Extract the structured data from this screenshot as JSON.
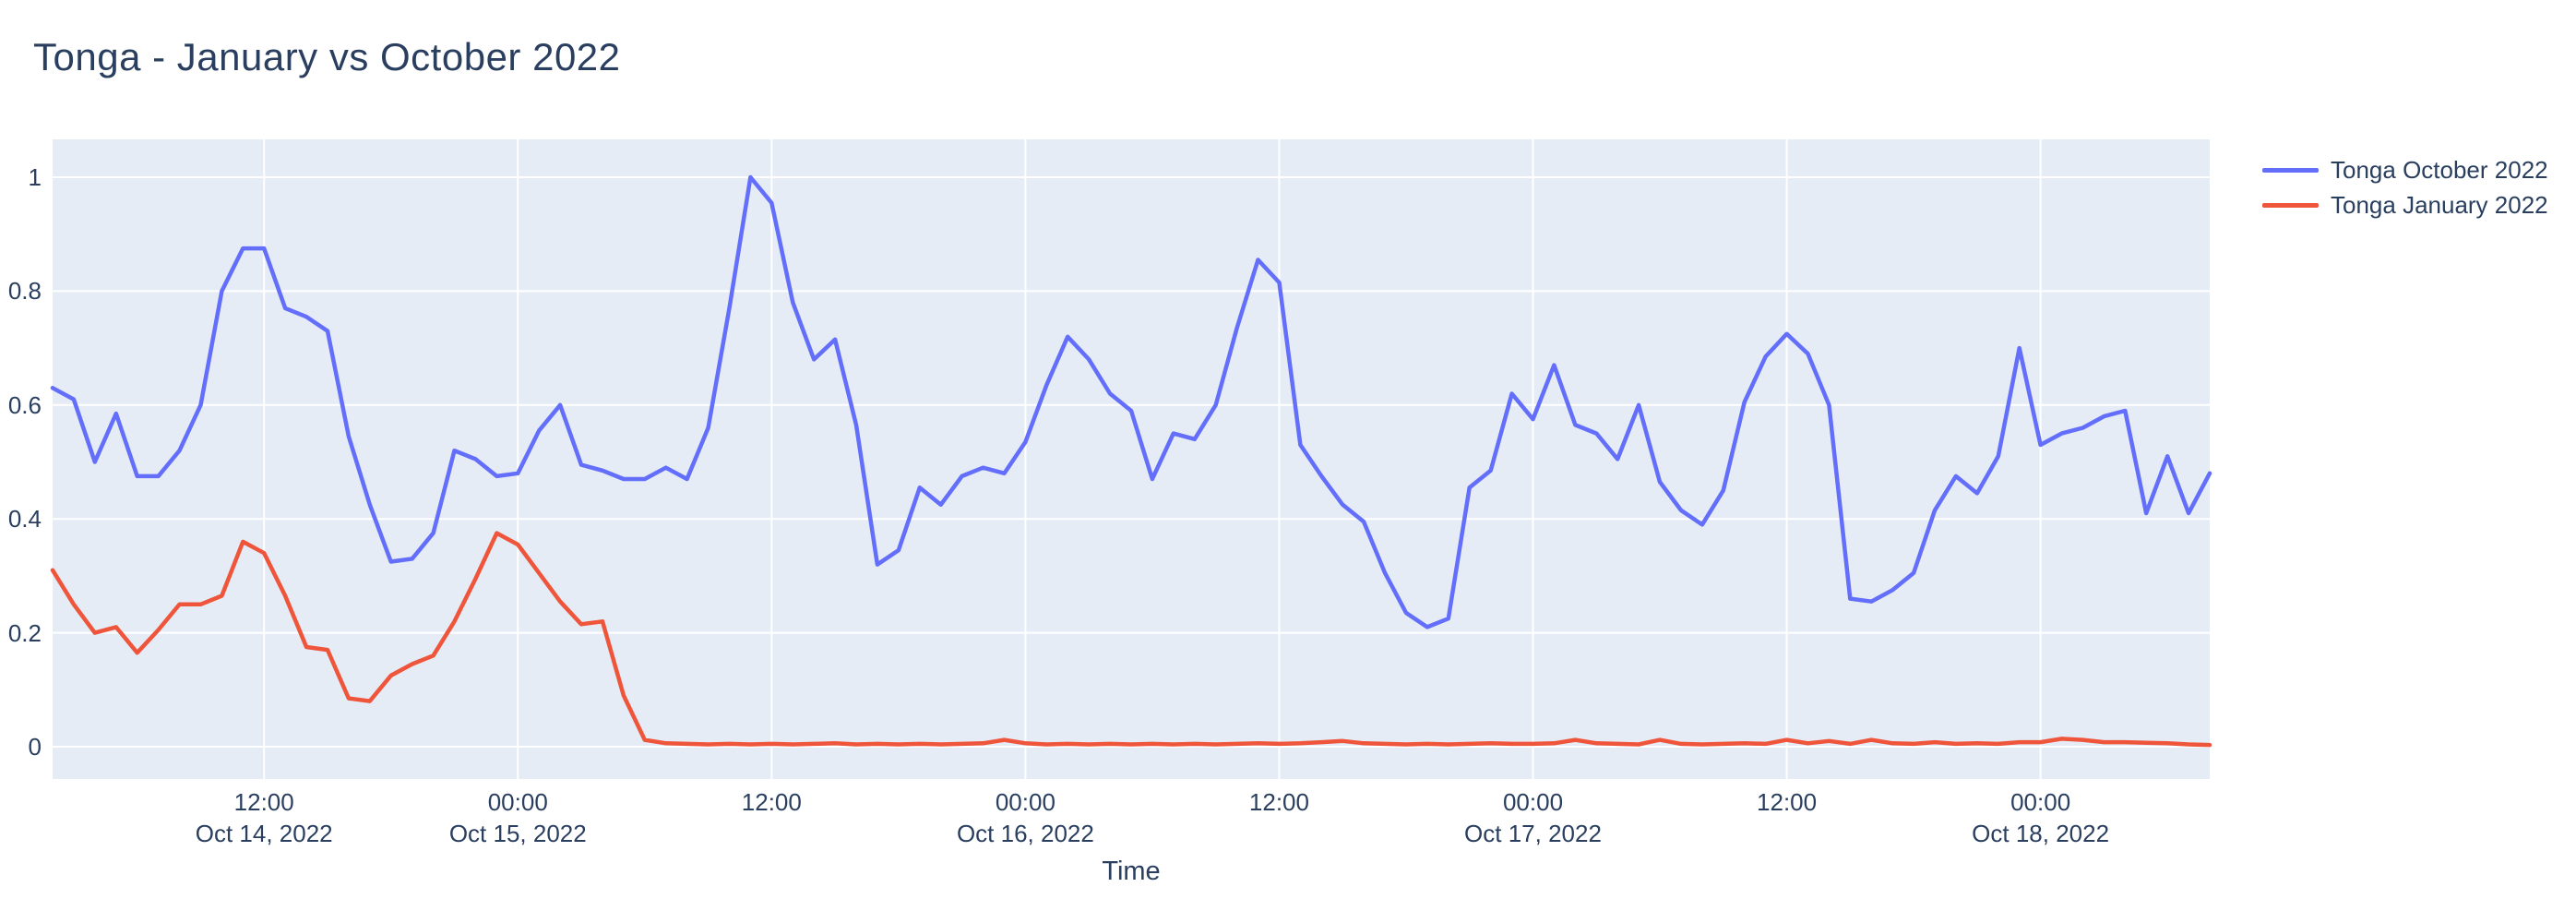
{
  "title": {
    "text": "Tonga - January vs October 2022",
    "color": "#2a3f5f"
  },
  "legend": {
    "items": [
      {
        "label": "Tonga October 2022",
        "color": "#636EFA"
      },
      {
        "label": "Tonga January 2022",
        "color": "#EF553B"
      }
    ]
  },
  "axes": {
    "x": {
      "title": "Time",
      "ticks": [
        {
          "time": "12:00",
          "date": "Oct 14, 2022",
          "datetime": "2022-10-14 12:00"
        },
        {
          "time": "00:00",
          "date": "Oct 15, 2022",
          "datetime": "2022-10-15 00:00"
        },
        {
          "time": "12:00",
          "date": "",
          "datetime": "2022-10-15 12:00"
        },
        {
          "time": "00:00",
          "date": "Oct 16, 2022",
          "datetime": "2022-10-16 00:00"
        },
        {
          "time": "12:00",
          "date": "",
          "datetime": "2022-10-16 12:00"
        },
        {
          "time": "00:00",
          "date": "Oct 17, 2022",
          "datetime": "2022-10-17 00:00"
        },
        {
          "time": "12:00",
          "date": "",
          "datetime": "2022-10-17 12:00"
        },
        {
          "time": "00:00",
          "date": "Oct 18, 2022",
          "datetime": "2022-10-18 00:00"
        }
      ]
    },
    "y": {
      "tick_values": [
        0,
        0.2,
        0.4,
        0.6,
        0.8,
        1
      ],
      "tick_labels": [
        "0",
        "0.2",
        "0.4",
        "0.6",
        "0.8",
        "1"
      ]
    }
  },
  "colors": {
    "plot_background": "#E5ECF6",
    "gridline": "#FFFFFF",
    "text": "#2a3f5f",
    "page_background": "#FFFFFF"
  },
  "chart_data": {
    "type": "line",
    "title": "Tonga - January vs October 2022",
    "xlabel": "Time",
    "ylabel": "",
    "x_start": "2022-10-14 02:00",
    "x_end": "2022-10-18 08:00",
    "interval_hours": 1,
    "ylim": [
      -0.06,
      1.065
    ],
    "grid": true,
    "legend_position": "right",
    "x": [
      "2022-10-14 02:00",
      "2022-10-14 03:00",
      "2022-10-14 04:00",
      "2022-10-14 05:00",
      "2022-10-14 06:00",
      "2022-10-14 07:00",
      "2022-10-14 08:00",
      "2022-10-14 09:00",
      "2022-10-14 10:00",
      "2022-10-14 11:00",
      "2022-10-14 12:00",
      "2022-10-14 13:00",
      "2022-10-14 14:00",
      "2022-10-14 15:00",
      "2022-10-14 16:00",
      "2022-10-14 17:00",
      "2022-10-14 18:00",
      "2022-10-14 19:00",
      "2022-10-14 20:00",
      "2022-10-14 21:00",
      "2022-10-14 22:00",
      "2022-10-14 23:00",
      "2022-10-15 00:00",
      "2022-10-15 01:00",
      "2022-10-15 02:00",
      "2022-10-15 03:00",
      "2022-10-15 04:00",
      "2022-10-15 05:00",
      "2022-10-15 06:00",
      "2022-10-15 07:00",
      "2022-10-15 08:00",
      "2022-10-15 09:00",
      "2022-10-15 10:00",
      "2022-10-15 11:00",
      "2022-10-15 12:00",
      "2022-10-15 13:00",
      "2022-10-15 14:00",
      "2022-10-15 15:00",
      "2022-10-15 16:00",
      "2022-10-15 17:00",
      "2022-10-15 18:00",
      "2022-10-15 19:00",
      "2022-10-15 20:00",
      "2022-10-15 21:00",
      "2022-10-15 22:00",
      "2022-10-15 23:00",
      "2022-10-16 00:00",
      "2022-10-16 01:00",
      "2022-10-16 02:00",
      "2022-10-16 03:00",
      "2022-10-16 04:00",
      "2022-10-16 05:00",
      "2022-10-16 06:00",
      "2022-10-16 07:00",
      "2022-10-16 08:00",
      "2022-10-16 09:00",
      "2022-10-16 10:00",
      "2022-10-16 11:00",
      "2022-10-16 12:00",
      "2022-10-16 13:00",
      "2022-10-16 14:00",
      "2022-10-16 15:00",
      "2022-10-16 16:00",
      "2022-10-16 17:00",
      "2022-10-16 18:00",
      "2022-10-16 19:00",
      "2022-10-16 20:00",
      "2022-10-16 21:00",
      "2022-10-16 22:00",
      "2022-10-16 23:00",
      "2022-10-17 00:00",
      "2022-10-17 01:00",
      "2022-10-17 02:00",
      "2022-10-17 03:00",
      "2022-10-17 04:00",
      "2022-10-17 05:00",
      "2022-10-17 06:00",
      "2022-10-17 07:00",
      "2022-10-17 08:00",
      "2022-10-17 09:00",
      "2022-10-17 10:00",
      "2022-10-17 11:00",
      "2022-10-17 12:00",
      "2022-10-17 13:00",
      "2022-10-17 14:00",
      "2022-10-17 15:00",
      "2022-10-17 16:00",
      "2022-10-17 17:00",
      "2022-10-17 18:00",
      "2022-10-17 19:00",
      "2022-10-17 20:00",
      "2022-10-17 21:00",
      "2022-10-17 22:00",
      "2022-10-17 23:00",
      "2022-10-18 00:00",
      "2022-10-18 01:00",
      "2022-10-18 02:00",
      "2022-10-18 03:00",
      "2022-10-18 04:00",
      "2022-10-18 05:00",
      "2022-10-18 06:00",
      "2022-10-18 07:00",
      "2022-10-18 08:00"
    ],
    "series": [
      {
        "name": "Tonga October 2022",
        "color": "#636EFA",
        "values": [
          0.63,
          0.61,
          0.5,
          0.585,
          0.475,
          0.475,
          0.52,
          0.6,
          0.8,
          0.875,
          0.875,
          0.77,
          0.755,
          0.73,
          0.545,
          0.425,
          0.325,
          0.33,
          0.375,
          0.52,
          0.505,
          0.475,
          0.48,
          0.555,
          0.6,
          0.495,
          0.485,
          0.47,
          0.47,
          0.49,
          0.47,
          0.56,
          0.77,
          1.0,
          0.955,
          0.78,
          0.68,
          0.715,
          0.565,
          0.32,
          0.345,
          0.455,
          0.425,
          0.475,
          0.49,
          0.48,
          0.535,
          0.635,
          0.72,
          0.68,
          0.62,
          0.59,
          0.47,
          0.55,
          0.54,
          0.6,
          0.735,
          0.855,
          0.815,
          0.53,
          0.475,
          0.425,
          0.395,
          0.305,
          0.235,
          0.21,
          0.225,
          0.455,
          0.485,
          0.62,
          0.575,
          0.67,
          0.565,
          0.55,
          0.505,
          0.6,
          0.465,
          0.415,
          0.39,
          0.45,
          0.605,
          0.685,
          0.725,
          0.69,
          0.6,
          0.26,
          0.255,
          0.275,
          0.305,
          0.415,
          0.475,
          0.445,
          0.51,
          0.7,
          0.53,
          0.55,
          0.56,
          0.58,
          0.59,
          0.41,
          0.51,
          0.41,
          0.48
        ]
      },
      {
        "name": "Tonga January 2022",
        "color": "#EF553B",
        "values": [
          0.31,
          0.25,
          0.2,
          0.21,
          0.165,
          0.205,
          0.25,
          0.25,
          0.265,
          0.36,
          0.34,
          0.265,
          0.175,
          0.17,
          0.085,
          0.08,
          0.125,
          0.145,
          0.16,
          0.22,
          0.295,
          0.375,
          0.355,
          0.305,
          0.255,
          0.215,
          0.22,
          0.09,
          0.012,
          0.006,
          0.005,
          0.004,
          0.005,
          0.004,
          0.005,
          0.004,
          0.005,
          0.006,
          0.004,
          0.005,
          0.004,
          0.005,
          0.004,
          0.005,
          0.006,
          0.012,
          0.006,
          0.004,
          0.005,
          0.004,
          0.005,
          0.004,
          0.005,
          0.004,
          0.005,
          0.004,
          0.005,
          0.006,
          0.005,
          0.006,
          0.008,
          0.01,
          0.006,
          0.005,
          0.004,
          0.005,
          0.004,
          0.005,
          0.006,
          0.005,
          0.005,
          0.006,
          0.012,
          0.006,
          0.005,
          0.004,
          0.012,
          0.005,
          0.004,
          0.005,
          0.006,
          0.005,
          0.012,
          0.006,
          0.01,
          0.005,
          0.012,
          0.006,
          0.005,
          0.008,
          0.005,
          0.006,
          0.005,
          0.008,
          0.008,
          0.014,
          0.012,
          0.008,
          0.008,
          0.007,
          0.006,
          0.004,
          0.003
        ]
      }
    ]
  }
}
